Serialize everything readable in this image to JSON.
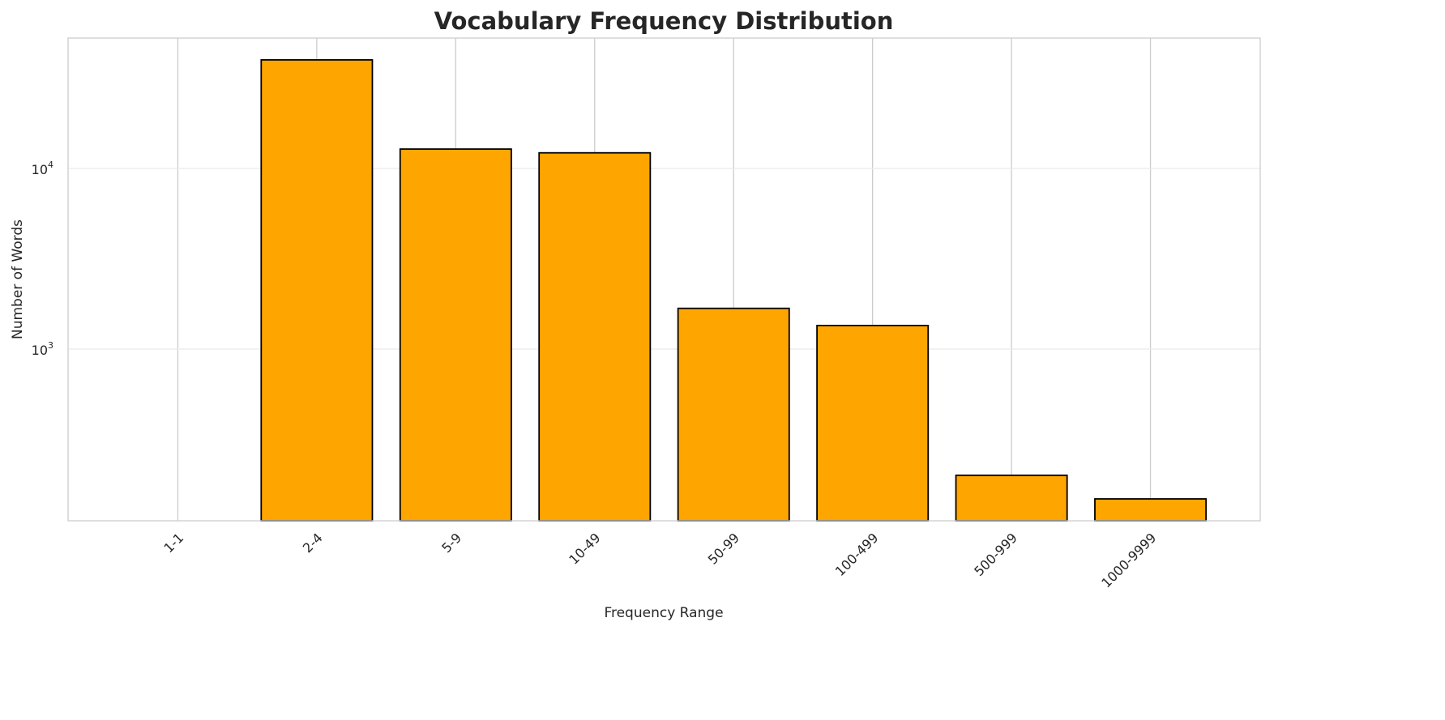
{
  "chart_data": {
    "type": "bar",
    "title": "Vocabulary Frequency Distribution",
    "xlabel": "Frequency Range",
    "ylabel": "Number of Words",
    "yscale": "log",
    "ylim": [
      112,
      52700
    ],
    "grid": true,
    "categories": [
      "1-1",
      "2-4",
      "5-9",
      "10-49",
      "50-99",
      "100-499",
      "500-999",
      "1000-9999"
    ],
    "values": [
      0,
      39900,
      12800,
      12200,
      1680,
      1350,
      200,
      148
    ],
    "yticks": [
      {
        "value": 1000,
        "base": "10",
        "exp": "3"
      },
      {
        "value": 10000,
        "base": "10",
        "exp": "4"
      }
    ],
    "bar_color": "#FFA500",
    "edge_color": "#000000"
  }
}
